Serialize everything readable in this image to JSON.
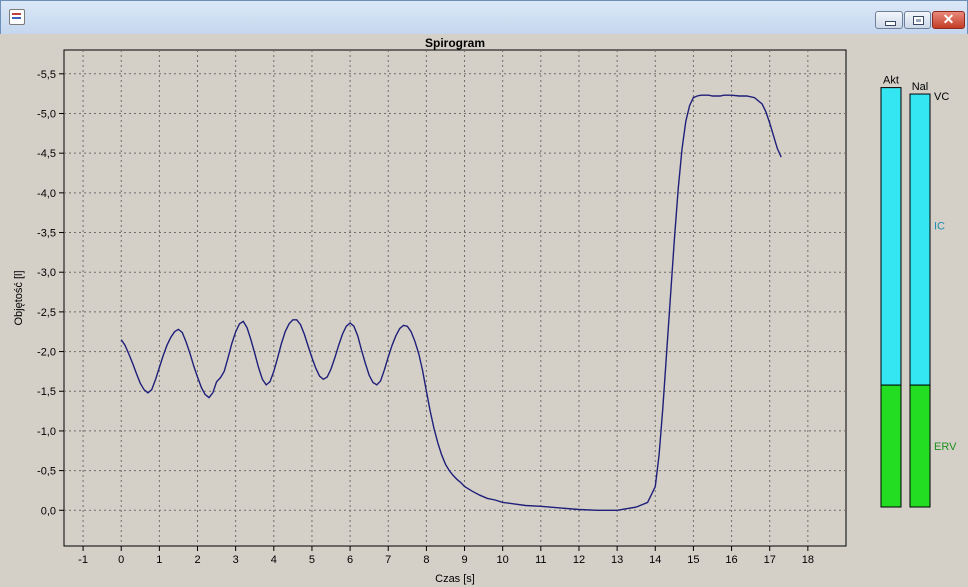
{
  "window": {
    "close_glyph": "✕"
  },
  "chart_data": {
    "type": "line",
    "title": "Spirogram",
    "xlabel": "Czas [s]",
    "ylabel": "Objętość [l]",
    "xlim": [
      -1.5,
      19
    ],
    "ylim": [
      -5.8,
      0.45
    ],
    "y_inverted": true,
    "grid": true,
    "xticks": [
      -1,
      0,
      1,
      2,
      3,
      4,
      5,
      6,
      7,
      8,
      9,
      10,
      11,
      12,
      13,
      14,
      15,
      16,
      17,
      18
    ],
    "xtick_labels": [
      "-1",
      "0",
      "1",
      "2",
      "3",
      "4",
      "5",
      "6",
      "7",
      "8",
      "9",
      "10",
      "11",
      "12",
      "13",
      "14",
      "15",
      "16",
      "17",
      "18"
    ],
    "yticks": [
      -5.5,
      -5.0,
      -4.5,
      -4.0,
      -3.5,
      -3.0,
      -2.5,
      -2.0,
      -1.5,
      -1.0,
      -0.5,
      0.0
    ],
    "ytick_labels": [
      "-5,5",
      "-5,0",
      "-4,5",
      "-4,0",
      "-3,5",
      "-3,0",
      "-2,5",
      "-2,0",
      "-1,5",
      "-1,0",
      "-0,5",
      "0,0"
    ],
    "series": [
      {
        "color": "#1f1f7a",
        "x": [
          0.0,
          0.1,
          0.2,
          0.3,
          0.4,
          0.5,
          0.6,
          0.7,
          0.8,
          0.9,
          1.0,
          1.1,
          1.2,
          1.3,
          1.4,
          1.5,
          1.6,
          1.7,
          1.8,
          1.9,
          2.0,
          2.1,
          2.2,
          2.3,
          2.4,
          2.5,
          2.6,
          2.7,
          2.8,
          2.9,
          3.0,
          3.1,
          3.2,
          3.3,
          3.4,
          3.5,
          3.6,
          3.7,
          3.8,
          3.9,
          4.0,
          4.1,
          4.2,
          4.3,
          4.4,
          4.5,
          4.6,
          4.7,
          4.8,
          4.9,
          5.0,
          5.1,
          5.2,
          5.3,
          5.4,
          5.5,
          5.6,
          5.7,
          5.8,
          5.9,
          6.0,
          6.1,
          6.2,
          6.3,
          6.4,
          6.5,
          6.6,
          6.7,
          6.8,
          6.9,
          7.0,
          7.1,
          7.2,
          7.3,
          7.4,
          7.5,
          7.6,
          7.7,
          7.8,
          7.9,
          8.0,
          8.1,
          8.2,
          8.3,
          8.4,
          8.5,
          8.6,
          8.7,
          8.8,
          8.9,
          9.0,
          9.2,
          9.4,
          9.6,
          9.8,
          10.0,
          10.3,
          10.6,
          11.0,
          11.5,
          12.0,
          12.5,
          13.0,
          13.5,
          13.8,
          14.0,
          14.1,
          14.2,
          14.3,
          14.4,
          14.5,
          14.6,
          14.7,
          14.8,
          14.9,
          15.0,
          15.1,
          15.2,
          15.3,
          15.4,
          15.5,
          15.6,
          15.7,
          15.8,
          16.0,
          16.2,
          16.4,
          16.6,
          16.8,
          16.9,
          17.0,
          17.1,
          17.2,
          17.3
        ],
        "y": [
          -2.15,
          -2.08,
          -1.97,
          -1.85,
          -1.72,
          -1.6,
          -1.52,
          -1.48,
          -1.52,
          -1.65,
          -1.8,
          -1.95,
          -2.08,
          -2.18,
          -2.25,
          -2.28,
          -2.24,
          -2.12,
          -1.98,
          -1.82,
          -1.68,
          -1.55,
          -1.46,
          -1.42,
          -1.48,
          -1.62,
          -1.67,
          -1.75,
          -1.92,
          -2.1,
          -2.25,
          -2.35,
          -2.38,
          -2.3,
          -2.15,
          -1.98,
          -1.8,
          -1.65,
          -1.58,
          -1.62,
          -1.75,
          -1.92,
          -2.1,
          -2.25,
          -2.35,
          -2.4,
          -2.4,
          -2.34,
          -2.22,
          -2.07,
          -1.92,
          -1.79,
          -1.69,
          -1.65,
          -1.68,
          -1.78,
          -1.92,
          -2.08,
          -2.22,
          -2.32,
          -2.36,
          -2.32,
          -2.2,
          -2.02,
          -1.85,
          -1.7,
          -1.61,
          -1.58,
          -1.63,
          -1.77,
          -1.93,
          -2.08,
          -2.2,
          -2.29,
          -2.33,
          -2.32,
          -2.25,
          -2.13,
          -1.97,
          -1.76,
          -1.5,
          -1.25,
          -1.03,
          -0.85,
          -0.7,
          -0.58,
          -0.5,
          -0.44,
          -0.39,
          -0.35,
          -0.3,
          -0.24,
          -0.19,
          -0.15,
          -0.13,
          -0.1,
          -0.08,
          -0.06,
          -0.05,
          -0.03,
          -0.01,
          0.0,
          0.0,
          -0.04,
          -0.1,
          -0.3,
          -0.7,
          -1.3,
          -2.0,
          -2.7,
          -3.4,
          -4.05,
          -4.55,
          -4.9,
          -5.1,
          -5.2,
          -5.22,
          -5.23,
          -5.23,
          -5.23,
          -5.22,
          -5.22,
          -5.22,
          -5.23,
          -5.23,
          -5.22,
          -5.22,
          -5.2,
          -5.12,
          -5.02,
          -4.88,
          -4.72,
          -4.56,
          -4.45
        ]
      }
    ]
  },
  "side_bars": {
    "akt_label": "Akt",
    "nal_label": "Nal",
    "vc_label": "VC",
    "ic_label": "IC",
    "erv_label": "ERV",
    "ic_color": "#33e6f2",
    "erv_color": "#22dd22",
    "vc_label_color": "#000000",
    "ic_label_color": "#1f8fb0",
    "erv_label_color": "#1f8f1f",
    "scale_max": 5.3,
    "akt": {
      "top": 5.23,
      "split": 1.52
    },
    "nal": {
      "top": 5.15,
      "split": 1.52
    }
  }
}
